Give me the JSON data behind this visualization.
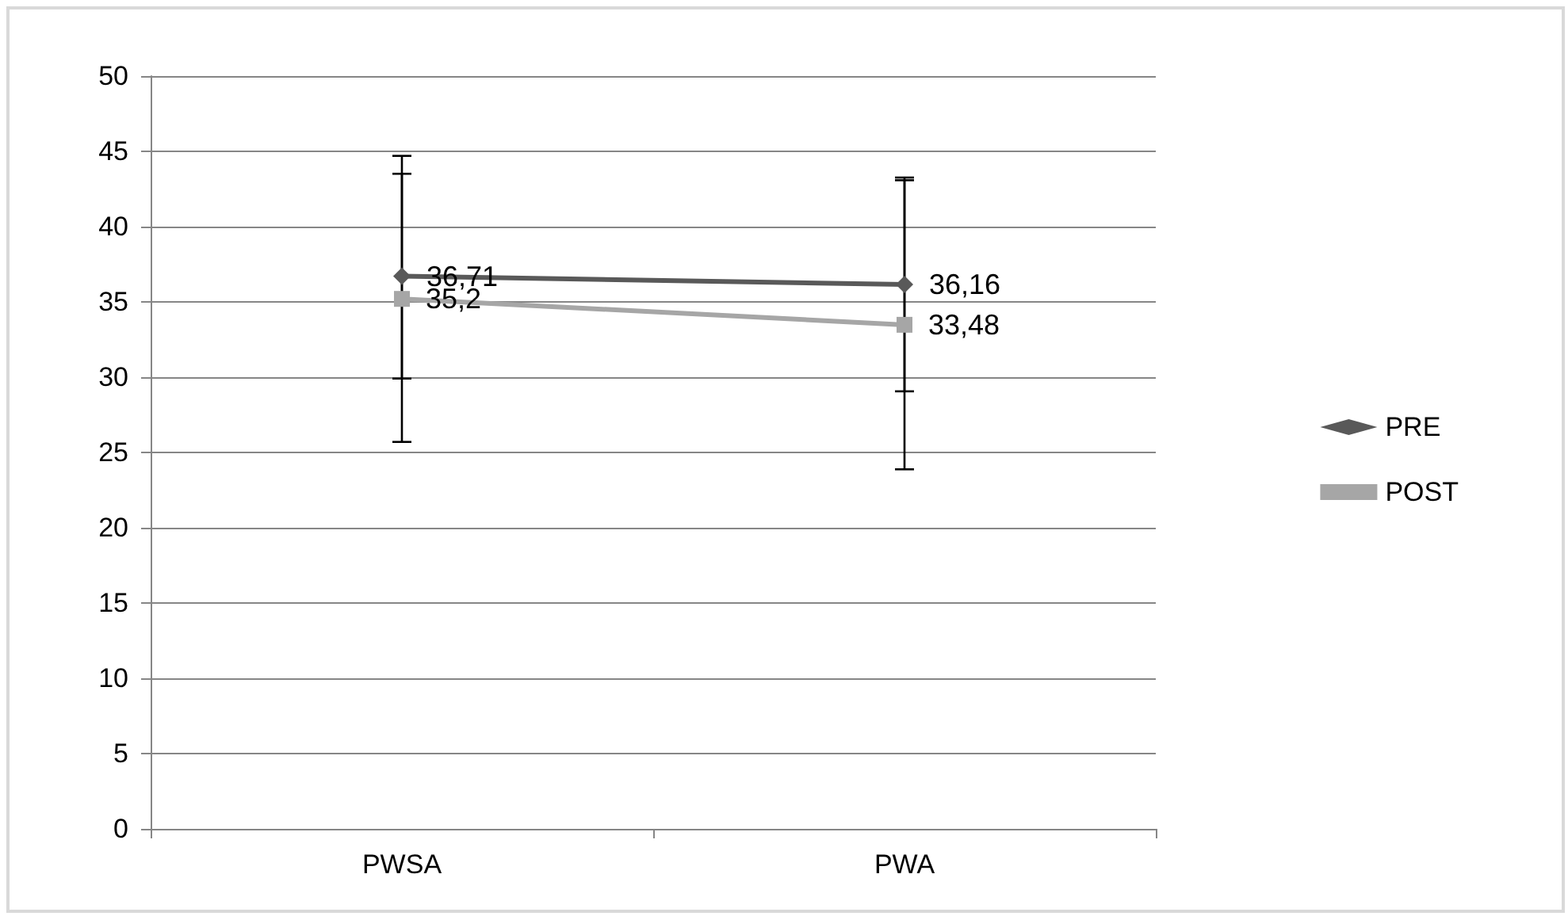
{
  "chart_data": {
    "type": "line",
    "categories": [
      "PWSA",
      "PWA"
    ],
    "series": [
      {
        "name": "PRE",
        "color": "#595959",
        "marker": "diamond",
        "values": [
          36.71,
          36.16
        ],
        "value_labels": [
          "36,71",
          "36,16"
        ],
        "errors": [
          6.8,
          7.1
        ]
      },
      {
        "name": "POST",
        "color": "#a6a6a6",
        "marker": "square",
        "values": [
          35.2,
          33.48
        ],
        "value_labels": [
          "35,2",
          "33,48"
        ],
        "errors": [
          9.5,
          9.6
        ]
      }
    ],
    "ylim": [
      0,
      50
    ],
    "yticks": [
      0,
      5,
      10,
      15,
      20,
      25,
      30,
      35,
      40,
      45,
      50
    ],
    "grid": "y",
    "legend": "right"
  }
}
